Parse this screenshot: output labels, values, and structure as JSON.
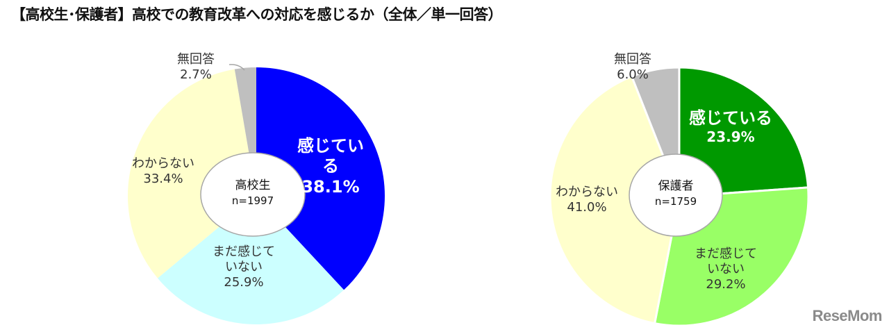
{
  "title": "【高校生･保護者】高校での教育改革への対応を感じるか（全体／単一回答）",
  "watermark": "ReseMom",
  "chart_data": [
    {
      "type": "pie",
      "title": "高校生",
      "center_label": "高校生",
      "n_label": "n=1997",
      "start_angle_deg": 0,
      "direction": "clockwise",
      "exploded": false,
      "slices": [
        {
          "label": "感じている",
          "value": 38.1,
          "display": "38.1%",
          "color": "#0000FF"
        },
        {
          "label": "まだ感じていない",
          "value": 25.9,
          "display": "25.9%",
          "color": "#CCFFFF"
        },
        {
          "label": "わからない",
          "value": 33.4,
          "display": "33.4%",
          "color": "#FFFFCC"
        },
        {
          "label": "無回答",
          "value": 2.7,
          "display": "2.7%",
          "color": "#BFBFBF"
        }
      ]
    },
    {
      "type": "pie",
      "title": "保護者",
      "center_label": "保護者",
      "n_label": "n=1759",
      "start_angle_deg": 0,
      "direction": "clockwise",
      "exploded": true,
      "slices": [
        {
          "label": "感じている",
          "value": 23.9,
          "display": "23.9%",
          "color": "#009900"
        },
        {
          "label": "まだ感じていない",
          "value": 29.2,
          "display": "29.2%",
          "color": "#99FF66"
        },
        {
          "label": "わからない",
          "value": 41.0,
          "display": "41.0%",
          "color": "#FFFFCC"
        },
        {
          "label": "無回答",
          "value": 6.0,
          "display": "6.0%",
          "color": "#BFBFBF"
        }
      ]
    }
  ],
  "labels": {
    "pie1": {
      "felt_line1": "感じてい",
      "felt_line2": "る",
      "felt_pct": "38.1%",
      "notyet_line1": "まだ感じて",
      "notyet_line2": "いない",
      "notyet_pct": "25.9%",
      "unknown_line1": "わからない",
      "unknown_pct": "33.4%",
      "noanswer_line1": "無回答",
      "noanswer_pct": "2.7%",
      "center_line1": "高校生",
      "center_line2": "n=1997"
    },
    "pie2": {
      "felt_line1": "感じている",
      "felt_pct": "23.9%",
      "notyet_line1": "まだ感じて",
      "notyet_line2": "いない",
      "notyet_pct": "29.2%",
      "unknown_line1": "わからない",
      "unknown_pct": "41.0%",
      "noanswer_line1": "無回答",
      "noanswer_pct": "6.0%",
      "center_line1": "保護者",
      "center_line2": "n=1759"
    }
  }
}
